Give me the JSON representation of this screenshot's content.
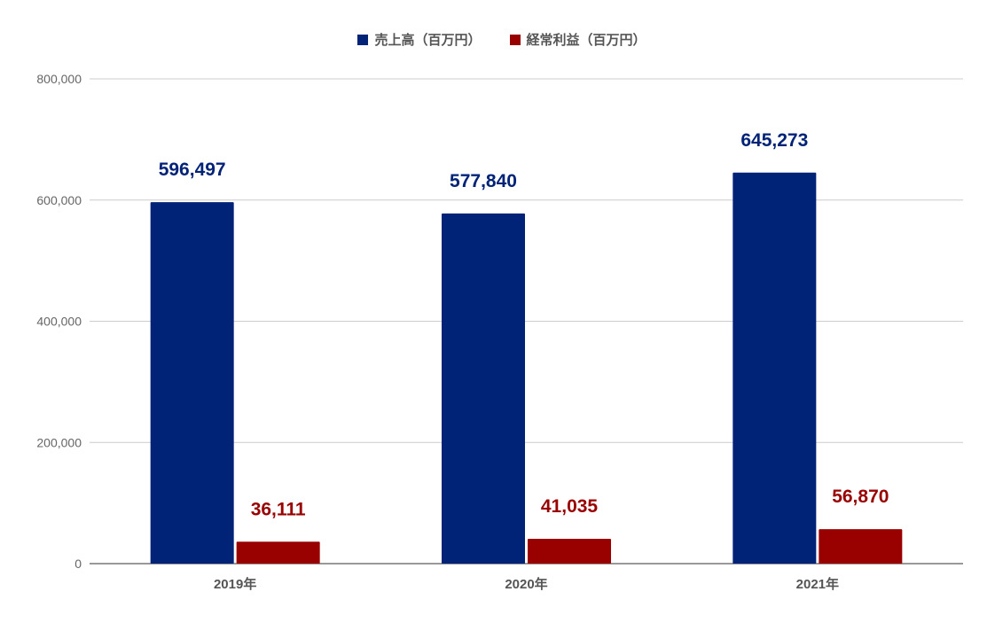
{
  "chart_data": {
    "type": "bar",
    "categories": [
      "2019年",
      "2020年",
      "2021年"
    ],
    "series": [
      {
        "name": "売上高（百万円）",
        "color": "#002277",
        "values": [
          596497,
          577840,
          645273
        ],
        "labels": [
          "596,497",
          "577,840",
          "645,273"
        ]
      },
      {
        "name": "経常利益（百万円）",
        "color": "#990000",
        "values": [
          36111,
          41035,
          56870
        ],
        "labels": [
          "36,111",
          "41,035",
          "56,870"
        ]
      }
    ],
    "ylim": [
      0,
      800000
    ],
    "yticks": [
      0,
      200000,
      400000,
      600000,
      800000
    ],
    "ytick_labels": [
      "0",
      "200,000",
      "400,000",
      "600,000",
      "800,000"
    ],
    "legend_position": "top",
    "grid": true
  }
}
